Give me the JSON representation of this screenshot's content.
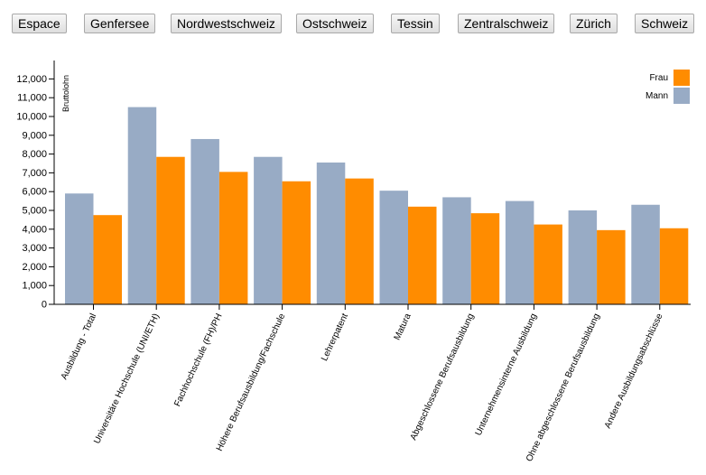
{
  "regions": [
    "Espace",
    "Genfersee",
    "Nordwestschweiz",
    "Ostschweiz",
    "Tessin",
    "Zentralschweiz",
    "Zürich",
    "Schweiz"
  ],
  "colors": {
    "Frau": "#ff8c00",
    "Mann": "#98abc5",
    "axis": "#000000"
  },
  "chart_data": {
    "type": "bar",
    "ylabel": "Bruttolohn",
    "xlabel": "",
    "ylim": [
      0,
      12500
    ],
    "yticks": [
      0,
      1000,
      2000,
      3000,
      4000,
      5000,
      6000,
      7000,
      8000,
      9000,
      10000,
      11000,
      12000
    ],
    "ytick_labels": [
      "0",
      "1,000",
      "2,000",
      "3,000",
      "4,000",
      "5,000",
      "6,000",
      "7,000",
      "8,000",
      "9,000",
      "10,000",
      "11,000",
      "12,000"
    ],
    "legend_position": "top-right",
    "categories": [
      "Ausbildung - Total",
      "Universitäre Hochschule (UNI/ETH)",
      "Fachhochschule (FH)/PH",
      "Höhere Berufsausbildung/Fachschule",
      "Lehrerpatent",
      "Matura",
      "Abgeschlossene Berufsausbildung",
      "Unternehmensinterne Ausbildung",
      "Ohne abgeschlossene Berufsausbildung",
      "Andere Ausbildungsabschlüsse"
    ],
    "series": [
      {
        "name": "Mann",
        "values": [
          5900,
          10500,
          8800,
          7850,
          7550,
          6050,
          5700,
          5500,
          5000,
          5300
        ]
      },
      {
        "name": "Frau",
        "values": [
          4750,
          7850,
          7050,
          6550,
          6700,
          5200,
          4850,
          4250,
          3950,
          4050
        ]
      }
    ]
  }
}
